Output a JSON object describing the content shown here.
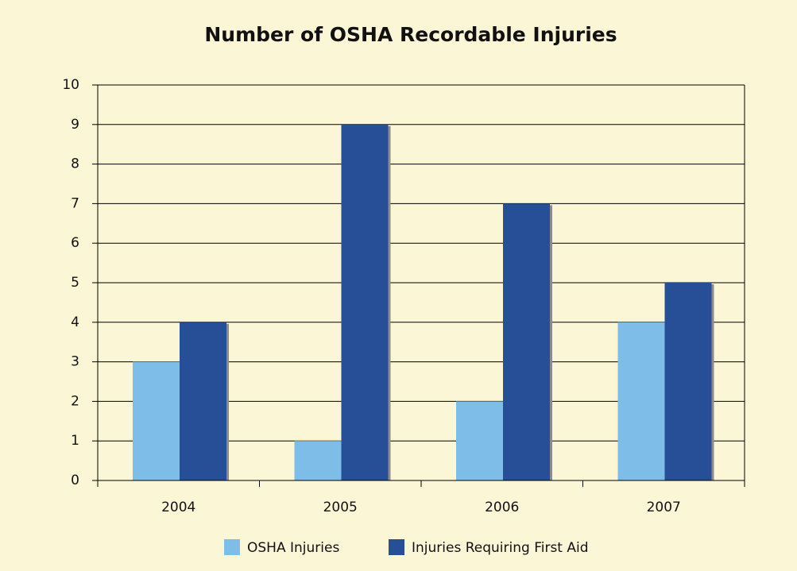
{
  "chart_data": {
    "type": "bar",
    "title": "Number of OSHA Recordable Injuries",
    "categories": [
      "2004",
      "2005",
      "2006",
      "2007"
    ],
    "series": [
      {
        "name": "OSHA Injuries",
        "color": "#7dbde8",
        "values": [
          3,
          1,
          2,
          4
        ]
      },
      {
        "name": "Injuries Requiring First Aid",
        "color": "#264f97",
        "values": [
          4,
          9,
          7,
          5
        ]
      }
    ],
    "ylim": [
      0,
      10
    ],
    "yticks": [
      0,
      1,
      2,
      3,
      4,
      5,
      6,
      7,
      8,
      9,
      10
    ],
    "grid": true,
    "legend": "bottom"
  }
}
